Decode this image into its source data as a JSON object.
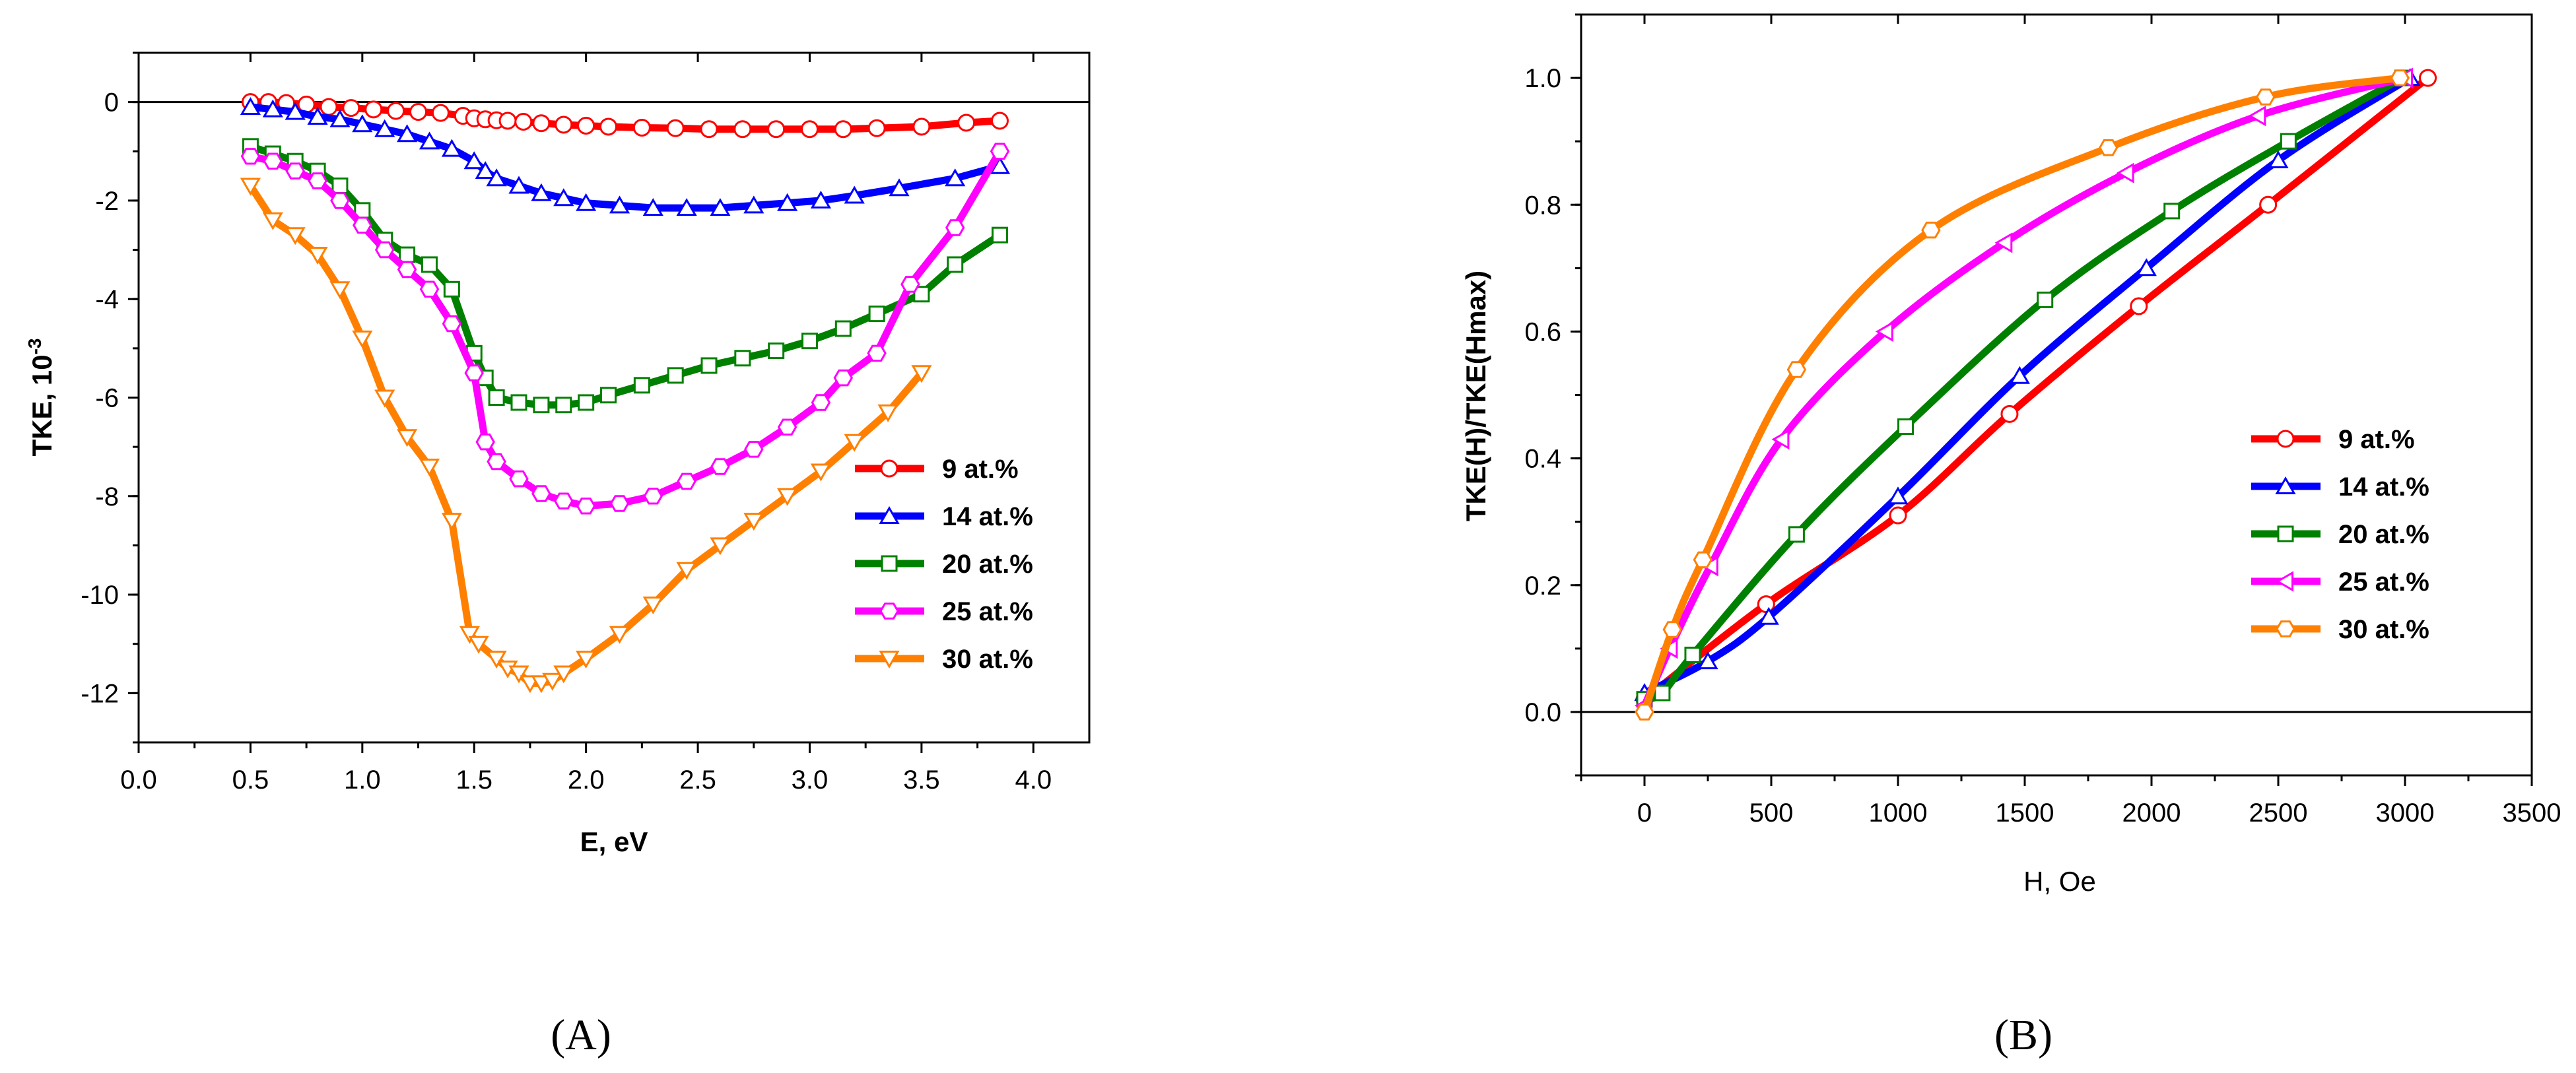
{
  "chart_data": [
    {
      "id": "A",
      "type": "line",
      "caption": "(A)",
      "xlabel": "E, eV",
      "ylabel": "TKE, 10",
      "ylabel_sup": "-3",
      "xlim": [
        0.0,
        4.25
      ],
      "ylim": [
        -13,
        1
      ],
      "xticks": [
        0.0,
        0.5,
        1.0,
        1.5,
        2.0,
        2.5,
        3.0,
        3.5,
        4.0
      ],
      "xtick_labels": [
        "0.0",
        "0.5",
        "1.0",
        "1.5",
        "2.0",
        "2.5",
        "3.0",
        "3.5",
        "4.0"
      ],
      "yticks": [
        0,
        -2,
        -4,
        -6,
        -8,
        -10,
        -12
      ],
      "ytick_labels": [
        "0",
        "-2",
        "-4",
        "-6",
        "-8",
        "-10",
        "-12"
      ],
      "zero_line": true,
      "legend_position": "lower-right",
      "series": [
        {
          "name": "9 at.%",
          "color": "#ff0000",
          "marker": "circle",
          "x": [
            0.5,
            0.58,
            0.66,
            0.75,
            0.85,
            0.95,
            1.05,
            1.15,
            1.25,
            1.35,
            1.45,
            1.5,
            1.55,
            1.6,
            1.65,
            1.72,
            1.8,
            1.9,
            2.0,
            2.1,
            2.25,
            2.4,
            2.55,
            2.7,
            2.85,
            3.0,
            3.15,
            3.3,
            3.5,
            3.7,
            3.85
          ],
          "y": [
            0,
            0,
            -0.02,
            -0.05,
            -0.1,
            -0.12,
            -0.15,
            -0.18,
            -0.2,
            -0.22,
            -0.28,
            -0.33,
            -0.35,
            -0.37,
            -0.38,
            -0.4,
            -0.43,
            -0.46,
            -0.48,
            -0.5,
            -0.52,
            -0.53,
            -0.55,
            -0.55,
            -0.55,
            -0.55,
            -0.55,
            -0.53,
            -0.5,
            -0.42,
            -0.38
          ]
        },
        {
          "name": "14 at.%",
          "color": "#0000ff",
          "marker": "triangle-up",
          "x": [
            0.5,
            0.6,
            0.7,
            0.8,
            0.9,
            1.0,
            1.1,
            1.2,
            1.3,
            1.4,
            1.5,
            1.55,
            1.6,
            1.7,
            1.8,
            1.9,
            2.0,
            2.15,
            2.3,
            2.45,
            2.6,
            2.75,
            2.9,
            3.05,
            3.2,
            3.4,
            3.65,
            3.85
          ],
          "y": [
            -0.1,
            -0.15,
            -0.2,
            -0.3,
            -0.35,
            -0.45,
            -0.55,
            -0.65,
            -0.8,
            -0.95,
            -1.2,
            -1.4,
            -1.55,
            -1.7,
            -1.85,
            -1.95,
            -2.05,
            -2.1,
            -2.15,
            -2.15,
            -2.15,
            -2.1,
            -2.05,
            -2.0,
            -1.9,
            -1.75,
            -1.55,
            -1.3
          ]
        },
        {
          "name": "20 at.%",
          "color": "#008000",
          "marker": "square",
          "x": [
            0.5,
            0.6,
            0.7,
            0.8,
            0.9,
            1.0,
            1.1,
            1.2,
            1.3,
            1.4,
            1.5,
            1.55,
            1.6,
            1.7,
            1.8,
            1.9,
            2.0,
            2.1,
            2.25,
            2.4,
            2.55,
            2.7,
            2.85,
            3.0,
            3.15,
            3.3,
            3.5,
            3.65,
            3.85
          ],
          "y": [
            -0.9,
            -1.05,
            -1.2,
            -1.4,
            -1.7,
            -2.2,
            -2.8,
            -3.1,
            -3.3,
            -3.8,
            -5.1,
            -5.6,
            -6.0,
            -6.1,
            -6.15,
            -6.15,
            -6.1,
            -5.95,
            -5.75,
            -5.55,
            -5.35,
            -5.2,
            -5.05,
            -4.85,
            -4.6,
            -4.3,
            -3.9,
            -3.3,
            -2.7
          ]
        },
        {
          "name": "25 at.%",
          "color": "#ff00ff",
          "marker": "hexagon",
          "x": [
            0.5,
            0.6,
            0.7,
            0.8,
            0.9,
            1.0,
            1.1,
            1.2,
            1.3,
            1.4,
            1.5,
            1.55,
            1.6,
            1.7,
            1.8,
            1.9,
            2.0,
            2.15,
            2.3,
            2.45,
            2.6,
            2.75,
            2.9,
            3.05,
            3.15,
            3.3,
            3.45,
            3.65,
            3.85
          ],
          "y": [
            -1.1,
            -1.2,
            -1.4,
            -1.6,
            -2.0,
            -2.5,
            -3.0,
            -3.4,
            -3.8,
            -4.5,
            -5.5,
            -6.9,
            -7.3,
            -7.65,
            -7.95,
            -8.1,
            -8.2,
            -8.15,
            -8.0,
            -7.7,
            -7.4,
            -7.05,
            -6.6,
            -6.1,
            -5.6,
            -5.1,
            -3.7,
            -2.55,
            -1.0
          ]
        },
        {
          "name": "30 at.%",
          "color": "#ff8000",
          "marker": "triangle-down",
          "x": [
            0.5,
            0.6,
            0.7,
            0.8,
            0.9,
            1.0,
            1.1,
            1.2,
            1.3,
            1.4,
            1.48,
            1.52,
            1.6,
            1.65,
            1.7,
            1.75,
            1.8,
            1.85,
            1.9,
            2.0,
            2.15,
            2.3,
            2.45,
            2.6,
            2.75,
            2.9,
            3.05,
            3.2,
            3.35,
            3.5
          ],
          "y": [
            -1.7,
            -2.4,
            -2.7,
            -3.1,
            -3.8,
            -4.8,
            -6.0,
            -6.8,
            -7.4,
            -8.5,
            -10.8,
            -11.0,
            -11.3,
            -11.5,
            -11.6,
            -11.8,
            -11.8,
            -11.75,
            -11.6,
            -11.3,
            -10.8,
            -10.2,
            -9.5,
            -9.0,
            -8.5,
            -8.0,
            -7.5,
            -6.9,
            -6.3,
            -5.5
          ]
        }
      ]
    },
    {
      "id": "B",
      "type": "line",
      "caption": "(B)",
      "xlabel": "H, Oe",
      "ylabel": "TKE(H)/TKE(Hmax)",
      "xlim": [
        -250,
        3500
      ],
      "ylim": [
        -0.1,
        1.1
      ],
      "xticks": [
        0,
        500,
        1000,
        1500,
        2000,
        2500,
        3000,
        3500
      ],
      "xtick_labels": [
        "0",
        "500",
        "1000",
        "1500",
        "2000",
        "2500",
        "3000",
        "3500"
      ],
      "yticks": [
        0.0,
        0.2,
        0.4,
        0.6,
        0.8,
        1.0
      ],
      "ytick_labels": [
        "0.0",
        "0.2",
        "0.4",
        "0.6",
        "0.8",
        "1.0"
      ],
      "zero_line": true,
      "legend_position": "center-right",
      "series": [
        {
          "name": "9 at.%",
          "color": "#ff0000",
          "marker": "circle",
          "x": [
            0,
            480,
            1000,
            1440,
            1950,
            2460,
            3090
          ],
          "y": [
            0.02,
            0.17,
            0.31,
            0.47,
            0.64,
            0.8,
            1.0
          ]
        },
        {
          "name": "14 at.%",
          "color": "#0000ff",
          "marker": "triangle-up",
          "x": [
            0,
            250,
            490,
            1000,
            1480,
            1980,
            2500,
            3020
          ],
          "y": [
            0.03,
            0.08,
            0.15,
            0.34,
            0.53,
            0.7,
            0.87,
            1.0
          ]
        },
        {
          "name": "20 at.%",
          "color": "#008000",
          "marker": "square",
          "x": [
            0,
            70,
            190,
            600,
            1030,
            1580,
            2080,
            2540,
            2990
          ],
          "y": [
            0.02,
            0.03,
            0.09,
            0.28,
            0.45,
            0.65,
            0.79,
            0.9,
            1.0
          ]
        },
        {
          "name": "25 at.%",
          "color": "#ff00ff",
          "marker": "triangle-left",
          "x": [
            0,
            100,
            260,
            540,
            950,
            1420,
            1900,
            2420,
            3000
          ],
          "y": [
            0.01,
            0.1,
            0.23,
            0.43,
            0.6,
            0.74,
            0.85,
            0.94,
            1.0
          ]
        },
        {
          "name": "30 at.%",
          "color": "#ff8000",
          "marker": "hexagon",
          "x": [
            0,
            110,
            230,
            600,
            1130,
            1830,
            2450,
            2980
          ],
          "y": [
            0.0,
            0.13,
            0.24,
            0.54,
            0.76,
            0.89,
            0.97,
            1.0
          ]
        }
      ]
    }
  ]
}
